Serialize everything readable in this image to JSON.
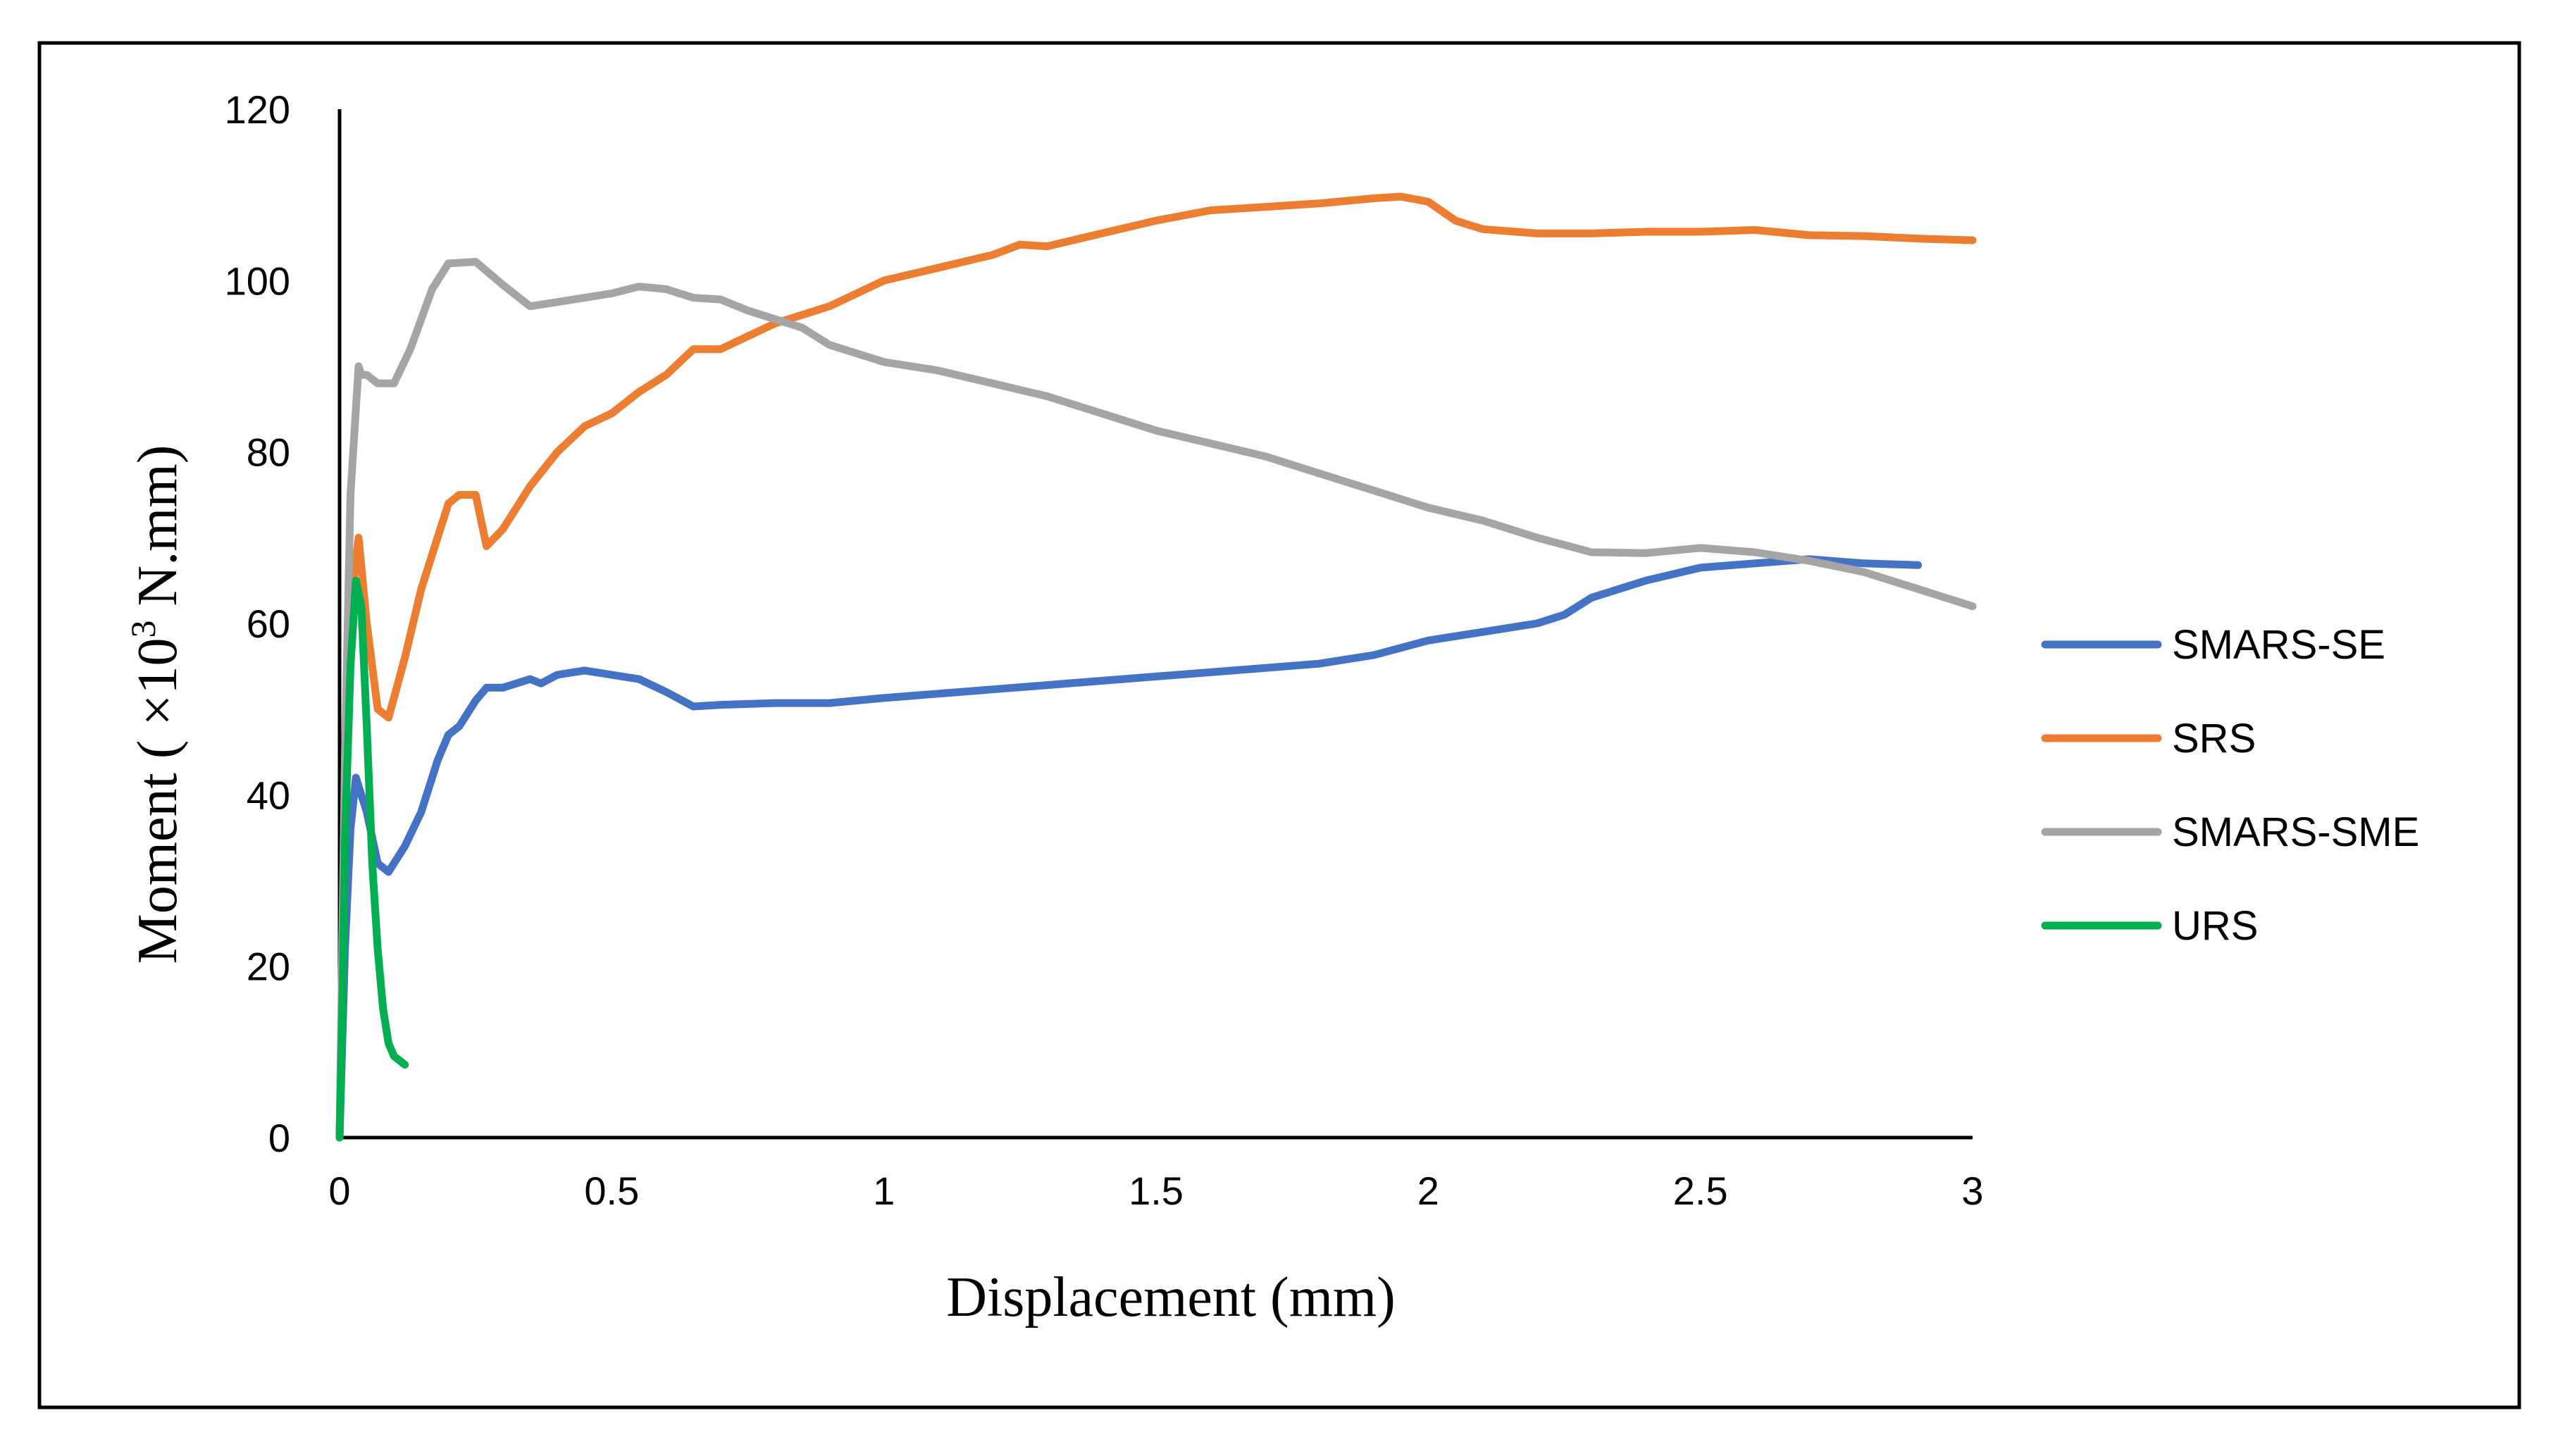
{
  "chart_data": {
    "type": "line",
    "title": "",
    "xlabel": "Displacement (mm)",
    "ylabel_parts": {
      "before": "Moment ( ×10",
      "sup": "3",
      "after": " N.mm)"
    },
    "ylabel": "Moment ( ×10³ N.mm)",
    "xlim": [
      0,
      3
    ],
    "ylim": [
      0,
      120
    ],
    "xticks": [
      0,
      0.5,
      1,
      1.5,
      2,
      2.5,
      3
    ],
    "xtick_labels": [
      "0",
      "0.5",
      "1",
      "1.5",
      "2",
      "2.5",
      "3"
    ],
    "yticks": [
      0,
      20,
      40,
      60,
      80,
      100,
      120
    ],
    "ytick_labels": [
      "0",
      "20",
      "40",
      "60",
      "80",
      "100",
      "120"
    ],
    "grid": false,
    "legend_position": "right",
    "series": [
      {
        "name": "SMARS-SE",
        "color": "#4472C4",
        "points": [
          [
            0,
            0
          ],
          [
            0.01,
            22
          ],
          [
            0.02,
            36
          ],
          [
            0.03,
            42
          ],
          [
            0.05,
            38
          ],
          [
            0.07,
            32
          ],
          [
            0.09,
            31
          ],
          [
            0.12,
            34
          ],
          [
            0.15,
            38
          ],
          [
            0.18,
            44
          ],
          [
            0.2,
            47
          ],
          [
            0.22,
            48
          ],
          [
            0.25,
            51
          ],
          [
            0.27,
            52.5
          ],
          [
            0.3,
            52.5
          ],
          [
            0.35,
            53.5
          ],
          [
            0.37,
            53
          ],
          [
            0.4,
            54
          ],
          [
            0.45,
            54.5
          ],
          [
            0.5,
            54
          ],
          [
            0.55,
            53.5
          ],
          [
            0.6,
            52
          ],
          [
            0.65,
            50.3
          ],
          [
            0.7,
            50.5
          ],
          [
            0.8,
            50.7
          ],
          [
            0.9,
            50.7
          ],
          [
            1.0,
            51.3
          ],
          [
            1.1,
            51.8
          ],
          [
            1.2,
            52.3
          ],
          [
            1.3,
            52.8
          ],
          [
            1.4,
            53.3
          ],
          [
            1.5,
            53.8
          ],
          [
            1.6,
            54.3
          ],
          [
            1.7,
            54.8
          ],
          [
            1.8,
            55.3
          ],
          [
            1.9,
            56.3
          ],
          [
            2.0,
            58
          ],
          [
            2.1,
            59
          ],
          [
            2.2,
            60
          ],
          [
            2.25,
            61
          ],
          [
            2.3,
            63
          ],
          [
            2.4,
            65
          ],
          [
            2.5,
            66.5
          ],
          [
            2.6,
            67
          ],
          [
            2.7,
            67.5
          ],
          [
            2.8,
            67
          ],
          [
            2.9,
            66.8
          ]
        ]
      },
      {
        "name": "SRS",
        "color": "#ED7D31",
        "points": [
          [
            0,
            0
          ],
          [
            0.01,
            40
          ],
          [
            0.02,
            62
          ],
          [
            0.035,
            70
          ],
          [
            0.05,
            60
          ],
          [
            0.07,
            50
          ],
          [
            0.09,
            49
          ],
          [
            0.12,
            56
          ],
          [
            0.15,
            64
          ],
          [
            0.2,
            74
          ],
          [
            0.22,
            75
          ],
          [
            0.25,
            75
          ],
          [
            0.27,
            69
          ],
          [
            0.3,
            71
          ],
          [
            0.35,
            76
          ],
          [
            0.4,
            80
          ],
          [
            0.45,
            83
          ],
          [
            0.5,
            84.5
          ],
          [
            0.55,
            87
          ],
          [
            0.6,
            89
          ],
          [
            0.65,
            92
          ],
          [
            0.7,
            92
          ],
          [
            0.75,
            93.5
          ],
          [
            0.8,
            95
          ],
          [
            0.85,
            96
          ],
          [
            0.9,
            97
          ],
          [
            0.95,
            98.5
          ],
          [
            1.0,
            100
          ],
          [
            1.1,
            101.5
          ],
          [
            1.2,
            103
          ],
          [
            1.25,
            104.2
          ],
          [
            1.3,
            104
          ],
          [
            1.4,
            105.5
          ],
          [
            1.5,
            107
          ],
          [
            1.6,
            108.2
          ],
          [
            1.7,
            108.6
          ],
          [
            1.8,
            109
          ],
          [
            1.9,
            109.6
          ],
          [
            1.95,
            109.8
          ],
          [
            2.0,
            109.2
          ],
          [
            2.05,
            107
          ],
          [
            2.1,
            106
          ],
          [
            2.2,
            105.5
          ],
          [
            2.3,
            105.5
          ],
          [
            2.4,
            105.7
          ],
          [
            2.5,
            105.7
          ],
          [
            2.6,
            105.9
          ],
          [
            2.7,
            105.3
          ],
          [
            2.8,
            105.2
          ],
          [
            2.9,
            104.9
          ],
          [
            3.0,
            104.7
          ]
        ]
      },
      {
        "name": "SMARS-SME",
        "color": "#A5A5A5",
        "points": [
          [
            0,
            0
          ],
          [
            0.01,
            45
          ],
          [
            0.02,
            75
          ],
          [
            0.035,
            90
          ],
          [
            0.04,
            89
          ],
          [
            0.05,
            89
          ],
          [
            0.07,
            88
          ],
          [
            0.1,
            88
          ],
          [
            0.13,
            92
          ],
          [
            0.17,
            99
          ],
          [
            0.2,
            102
          ],
          [
            0.25,
            102.2
          ],
          [
            0.3,
            99.5
          ],
          [
            0.35,
            97
          ],
          [
            0.4,
            97.5
          ],
          [
            0.45,
            98
          ],
          [
            0.5,
            98.5
          ],
          [
            0.55,
            99.3
          ],
          [
            0.6,
            99
          ],
          [
            0.65,
            98
          ],
          [
            0.7,
            97.8
          ],
          [
            0.75,
            96.5
          ],
          [
            0.8,
            95.5
          ],
          [
            0.85,
            94.5
          ],
          [
            0.9,
            92.5
          ],
          [
            1.0,
            90.5
          ],
          [
            1.1,
            89.5
          ],
          [
            1.2,
            88
          ],
          [
            1.3,
            86.5
          ],
          [
            1.4,
            84.5
          ],
          [
            1.5,
            82.5
          ],
          [
            1.6,
            81
          ],
          [
            1.7,
            79.5
          ],
          [
            1.8,
            77.5
          ],
          [
            1.9,
            75.5
          ],
          [
            2.0,
            73.5
          ],
          [
            2.1,
            72
          ],
          [
            2.2,
            70
          ],
          [
            2.3,
            68.3
          ],
          [
            2.4,
            68.2
          ],
          [
            2.5,
            68.8
          ],
          [
            2.6,
            68.3
          ],
          [
            2.7,
            67.3
          ],
          [
            2.8,
            66
          ],
          [
            2.9,
            64
          ],
          [
            3.0,
            62
          ]
        ]
      },
      {
        "name": "URS",
        "color": "#00B050",
        "points": [
          [
            0,
            0
          ],
          [
            0.005,
            15
          ],
          [
            0.01,
            35
          ],
          [
            0.02,
            55
          ],
          [
            0.03,
            65
          ],
          [
            0.04,
            62
          ],
          [
            0.05,
            48
          ],
          [
            0.06,
            32
          ],
          [
            0.07,
            22
          ],
          [
            0.08,
            15
          ],
          [
            0.09,
            11
          ],
          [
            0.1,
            9.5
          ],
          [
            0.12,
            8.5
          ]
        ]
      }
    ]
  }
}
